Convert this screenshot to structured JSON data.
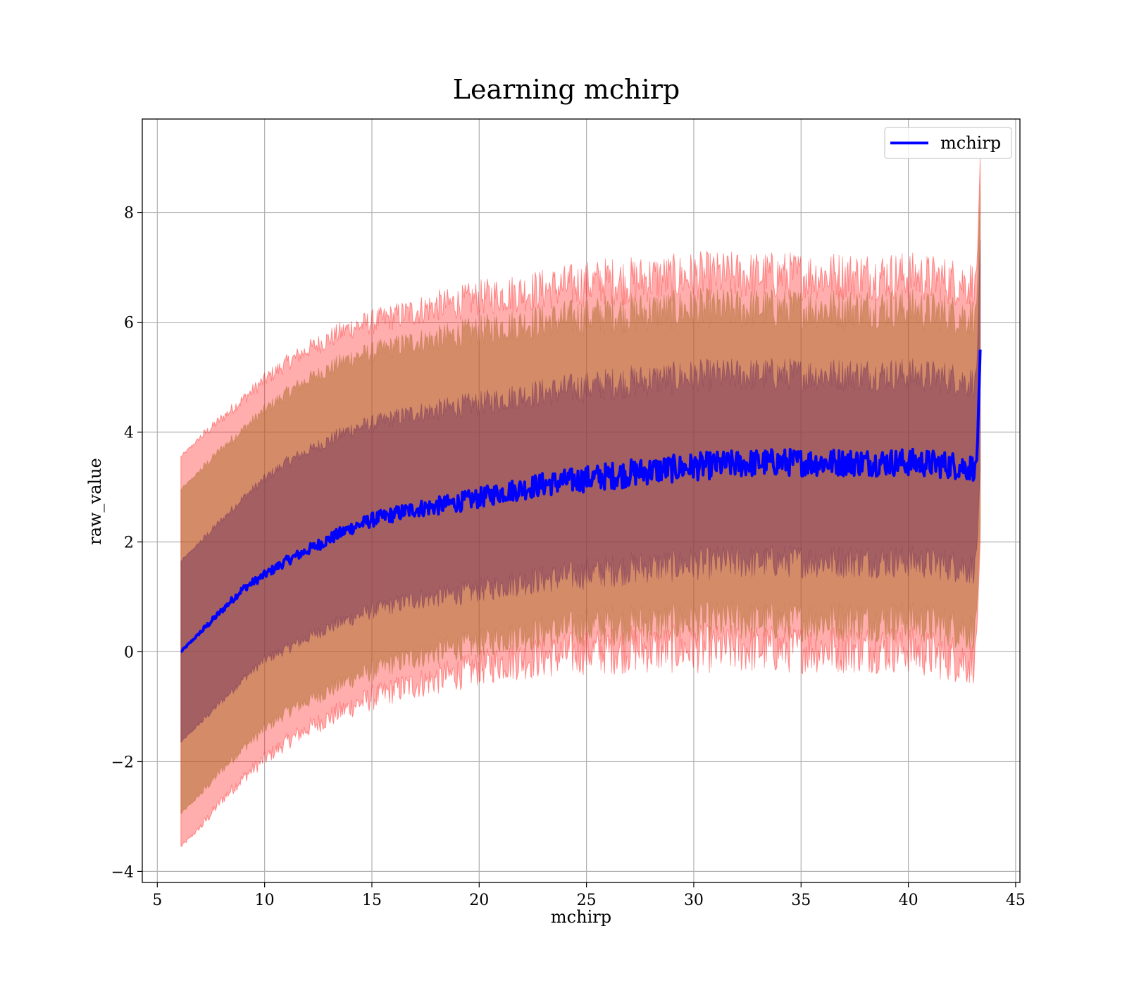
{
  "chart_data": {
    "type": "line",
    "title": "Learning mchirp",
    "xlabel": "mchirp",
    "ylabel": "raw_value",
    "xlim": [
      4.3,
      45.2
    ],
    "ylim": [
      -4.2,
      9.7
    ],
    "xticks": [
      5,
      10,
      15,
      20,
      25,
      30,
      35,
      40,
      45
    ],
    "yticks": [
      -4,
      -2,
      0,
      2,
      4,
      6,
      8
    ],
    "ytick_labels": [
      "−4",
      "−2",
      "0",
      "2",
      "4",
      "6",
      "8"
    ],
    "grid": true,
    "legend_position": "upper right",
    "x": [
      6.1,
      7.0,
      8.0,
      9.0,
      10.0,
      11.0,
      12.0,
      13.0,
      14.0,
      15.0,
      16.0,
      17.0,
      18.0,
      19.0,
      20.0,
      21.0,
      22.0,
      23.0,
      24.0,
      25.0,
      26.0,
      27.0,
      28.0,
      29.0,
      30.0,
      31.0,
      32.0,
      33.0,
      34.0,
      35.0,
      36.0,
      37.0,
      38.0,
      39.0,
      40.0,
      41.0,
      42.0,
      43.0,
      43.2,
      43.35
    ],
    "series": [
      {
        "name": "mchirp",
        "color": "#0000ff",
        "values": [
          0.0,
          0.35,
          0.75,
          1.15,
          1.4,
          1.65,
          1.85,
          2.05,
          2.25,
          2.4,
          2.5,
          2.6,
          2.65,
          2.72,
          2.8,
          2.9,
          2.97,
          3.05,
          3.1,
          3.15,
          3.2,
          3.25,
          3.3,
          3.33,
          3.37,
          3.4,
          3.42,
          3.44,
          3.45,
          3.45,
          3.45,
          3.45,
          3.45,
          3.45,
          3.45,
          3.43,
          3.4,
          3.35,
          3.5,
          5.5
        ]
      }
    ],
    "bands": [
      {
        "color": "#ff0000",
        "lower": [
          -3.55,
          -3.2,
          -2.7,
          -2.3,
          -1.95,
          -1.65,
          -1.4,
          -1.2,
          -1.0,
          -0.85,
          -0.7,
          -0.6,
          -0.5,
          -0.4,
          -0.3,
          -0.2,
          -0.15,
          -0.1,
          -0.05,
          0.0,
          0.02,
          0.05,
          0.05,
          0.05,
          0.05,
          0.05,
          0.05,
          0.05,
          0.05,
          0.05,
          0.05,
          0.05,
          0.05,
          0.05,
          0.05,
          -0.05,
          -0.1,
          -0.2,
          0.4,
          2.0
        ],
        "upper": [
          3.55,
          3.9,
          4.25,
          4.6,
          4.95,
          5.25,
          5.5,
          5.7,
          5.9,
          6.0,
          6.1,
          6.2,
          6.3,
          6.35,
          6.45,
          6.5,
          6.55,
          6.6,
          6.65,
          6.7,
          6.75,
          6.75,
          6.8,
          6.8,
          6.85,
          6.85,
          6.85,
          6.85,
          6.85,
          6.85,
          6.85,
          6.85,
          6.85,
          6.85,
          6.85,
          6.8,
          6.75,
          6.7,
          7.0,
          9.0
        ]
      },
      {
        "color": "#b07030",
        "lower": [
          -2.95,
          -2.6,
          -2.15,
          -1.75,
          -1.4,
          -1.1,
          -0.9,
          -0.7,
          -0.5,
          -0.35,
          -0.2,
          -0.1,
          0.0,
          0.08,
          0.15,
          0.25,
          0.3,
          0.35,
          0.4,
          0.45,
          0.48,
          0.5,
          0.52,
          0.53,
          0.55,
          0.55,
          0.56,
          0.56,
          0.56,
          0.56,
          0.56,
          0.56,
          0.56,
          0.56,
          0.56,
          0.5,
          0.45,
          0.35,
          0.8,
          2.3
        ],
        "upper": [
          2.95,
          3.3,
          3.7,
          4.05,
          4.4,
          4.7,
          4.95,
          5.15,
          5.35,
          5.45,
          5.55,
          5.65,
          5.7,
          5.78,
          5.85,
          5.92,
          5.97,
          6.02,
          6.07,
          6.1,
          6.15,
          6.17,
          6.2,
          6.22,
          6.25,
          6.25,
          6.25,
          6.25,
          6.25,
          6.25,
          6.25,
          6.25,
          6.25,
          6.25,
          6.25,
          6.2,
          6.15,
          6.1,
          6.4,
          8.5
        ]
      },
      {
        "color": "#6a2a5a",
        "lower": [
          -1.65,
          -1.3,
          -0.9,
          -0.5,
          -0.15,
          0.05,
          0.25,
          0.45,
          0.6,
          0.75,
          0.85,
          0.95,
          1.0,
          1.05,
          1.12,
          1.2,
          1.27,
          1.32,
          1.37,
          1.42,
          1.47,
          1.52,
          1.55,
          1.57,
          1.6,
          1.62,
          1.63,
          1.64,
          1.65,
          1.65,
          1.65,
          1.65,
          1.65,
          1.65,
          1.65,
          1.62,
          1.58,
          1.5,
          1.9,
          3.3
        ],
        "upper": [
          1.65,
          2.0,
          2.4,
          2.8,
          3.15,
          3.45,
          3.65,
          3.85,
          4.05,
          4.15,
          4.25,
          4.35,
          4.4,
          4.47,
          4.52,
          4.6,
          4.67,
          4.72,
          4.78,
          4.82,
          4.87,
          4.92,
          4.95,
          4.98,
          5.02,
          5.03,
          5.04,
          5.05,
          5.05,
          5.05,
          5.05,
          5.05,
          5.05,
          5.05,
          5.05,
          5.02,
          4.98,
          4.9,
          5.2,
          7.5
        ]
      }
    ]
  }
}
